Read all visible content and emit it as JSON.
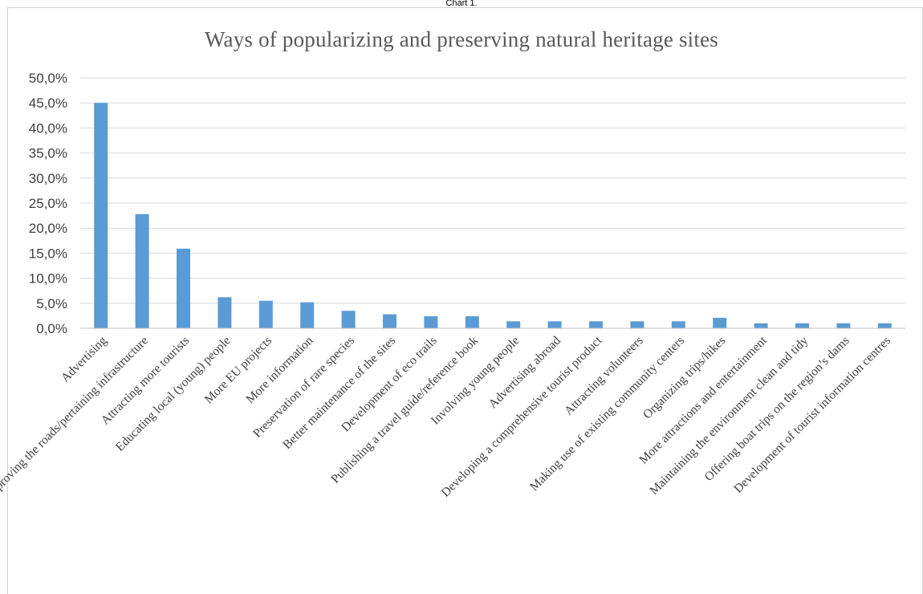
{
  "caption": "Chart 1.",
  "chart_data": {
    "type": "bar",
    "title": "Ways of popularizing and preserving natural heritage sites",
    "xlabel": "",
    "ylabel": "",
    "ylim": [
      0,
      0.5
    ],
    "y_ticks": [
      "0,0%",
      "5,0%",
      "10,0%",
      "15,0%",
      "20,0%",
      "25,0%",
      "30,0%",
      "35,0%",
      "40,0%",
      "45,0%",
      "50,0%"
    ],
    "grid": true,
    "legend": "none",
    "bar_color": "#5b9bd5",
    "categories": [
      "Advertising",
      "Improving the roads/pertaining infrastructure",
      "Attracting more tourists",
      "Educating local (young) people",
      "More EU projects",
      "More information",
      "Preservation of rare species",
      "Better maintenance of the sites",
      "Development of eco trails",
      "Publishing a travel guide/reference book",
      "Involving young people",
      "Advertising abroad",
      "Developing a comprehensive tourist product",
      "Attracting volunteers",
      "Making use of existing community centers",
      "Organizing trips/hikes",
      "More attractions and entertainment",
      "Maintaining the environment clean and tidy",
      "Offering boat trips on the region’s dams",
      "Development of tourist information centres"
    ],
    "values": [
      0.45,
      0.228,
      0.159,
      0.062,
      0.055,
      0.052,
      0.035,
      0.028,
      0.024,
      0.024,
      0.014,
      0.014,
      0.014,
      0.014,
      0.014,
      0.021,
      0.01,
      0.01,
      0.01,
      0.01
    ]
  }
}
